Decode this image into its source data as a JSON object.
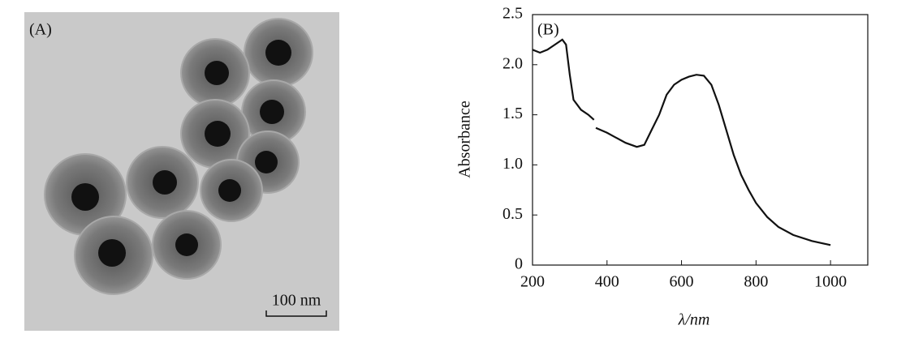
{
  "panel_a": {
    "label": "(A)",
    "scale_bar": "100 nm"
  },
  "chart_data": {
    "type": "line",
    "label": "(B)",
    "x_label": "λ/nm",
    "y_label": "Absorbance",
    "x": [
      200,
      220,
      240,
      260,
      280,
      290,
      300,
      310,
      330,
      350,
      365,
      367,
      370,
      400,
      420,
      450,
      480,
      500,
      520,
      540,
      560,
      580,
      600,
      620,
      640,
      660,
      680,
      700,
      720,
      740,
      760,
      780,
      800,
      830,
      860,
      900,
      950,
      1000
    ],
    "series": [
      {
        "color": "#111111",
        "values": [
          2.15,
          2.12,
          2.15,
          2.2,
          2.25,
          2.2,
          1.9,
          1.65,
          1.55,
          1.5,
          1.45,
          null,
          1.37,
          1.32,
          1.28,
          1.22,
          1.18,
          1.2,
          1.35,
          1.5,
          1.7,
          1.8,
          1.85,
          1.88,
          1.9,
          1.89,
          1.8,
          1.6,
          1.35,
          1.1,
          0.9,
          0.75,
          0.62,
          0.48,
          0.38,
          0.3,
          0.24,
          0.2
        ]
      }
    ],
    "xlim": [
      200,
      1100
    ],
    "ylim": [
      0,
      2.5
    ],
    "xticks": [
      200,
      400,
      600,
      800,
      1000
    ],
    "yticks": [
      0,
      0.5,
      {
        "value": 1,
        "label": "1.0"
      },
      1.5,
      {
        "value": 2,
        "label": "2.0"
      },
      2.5
    ]
  }
}
